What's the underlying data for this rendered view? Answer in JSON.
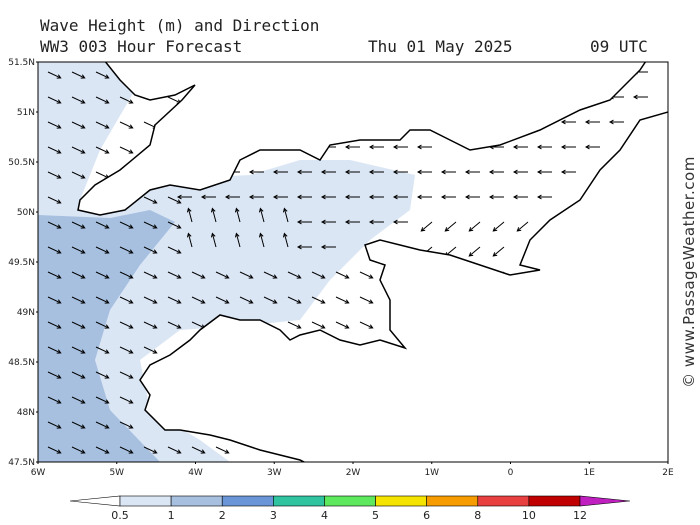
{
  "header": {
    "title": "Wave Height (m) and Direction",
    "subtitle": "WW3 003 Hour Forecast",
    "date": "Thu 01 May 2025",
    "time": "09 UTC"
  },
  "map": {
    "lat_labels": [
      "51.5N",
      "51N",
      "50.5N",
      "50N",
      "49.5N",
      "49N",
      "48.5N",
      "48N",
      "47.5N"
    ],
    "lon_labels": [
      "6W",
      "5W",
      "4W",
      "3W",
      "2W",
      "1W",
      "0",
      "1E",
      "2E"
    ]
  },
  "colorbar": {
    "labels": [
      "0.5",
      "1",
      "2",
      "3",
      "4",
      "5",
      "6",
      "8",
      "10",
      "12"
    ],
    "colors": [
      "#dbe6f5",
      "#a7c0e0",
      "#6a96d8",
      "#2fc3a0",
      "#5ee85e",
      "#f5e400",
      "#f79c00",
      "#e84040",
      "#c00000"
    ],
    "over_color": "#c020c0"
  },
  "watermark": "© www.PassageWeather.com"
}
